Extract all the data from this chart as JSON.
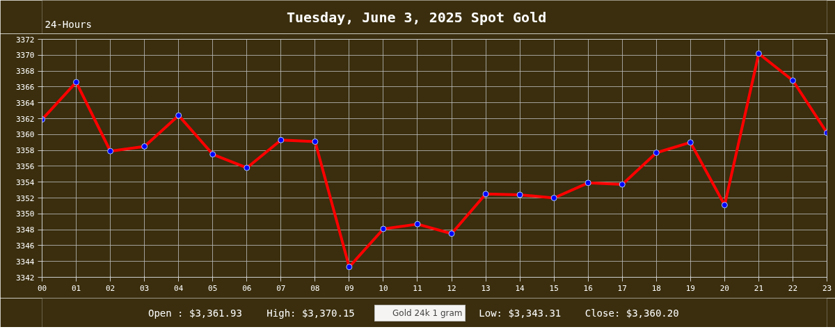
{
  "chart_data": {
    "type": "line",
    "title": "Tuesday, June 3, 2025 Spot Gold",
    "annotations": [
      "24-Hours",
      "Open : $3,361.93",
      "High: $3,370.15",
      "Low: $3,343.31",
      "Close: $3,360.20"
    ],
    "x": [
      0,
      1,
      2,
      3,
      4,
      5,
      6,
      7,
      8,
      9,
      10,
      11,
      12,
      13,
      14,
      15,
      16,
      17,
      18,
      19,
      20,
      21,
      22,
      23
    ],
    "series": [
      {
        "name": "Gold 24k 1 gram",
        "color": "#ff0000",
        "values": [
          3361.9,
          3366.6,
          3357.9,
          3358.5,
          3362.4,
          3357.5,
          3355.8,
          3359.3,
          3359.1,
          3343.3,
          3348.1,
          3348.7,
          3347.5,
          3352.5,
          3352.4,
          3352.0,
          3353.9,
          3353.7,
          3357.7,
          3359.0,
          3351.1,
          3370.2,
          3366.8,
          3360.2
        ]
      }
    ],
    "xlim": [
      0,
      23
    ],
    "xticks": [
      {
        "value": 0,
        "label": "00"
      },
      {
        "value": 1,
        "label": "01"
      },
      {
        "value": 2,
        "label": "02"
      },
      {
        "value": 3,
        "label": "03"
      },
      {
        "value": 4,
        "label": "04"
      },
      {
        "value": 5,
        "label": "05"
      },
      {
        "value": 6,
        "label": "06"
      },
      {
        "value": 7,
        "label": "07"
      },
      {
        "value": 8,
        "label": "08"
      },
      {
        "value": 9,
        "label": "09"
      },
      {
        "value": 10,
        "label": "10"
      },
      {
        "value": 11,
        "label": "11"
      },
      {
        "value": 12,
        "label": "12"
      },
      {
        "value": 13,
        "label": "13"
      },
      {
        "value": 14,
        "label": "14"
      },
      {
        "value": 15,
        "label": "15"
      },
      {
        "value": 16,
        "label": "16"
      },
      {
        "value": 17,
        "label": "17"
      },
      {
        "value": 18,
        "label": "18"
      },
      {
        "value": 19,
        "label": "19"
      },
      {
        "value": 20,
        "label": "20"
      },
      {
        "value": 21,
        "label": "21"
      },
      {
        "value": 22,
        "label": "22"
      },
      {
        "value": 23,
        "label": "23"
      }
    ],
    "ylim": [
      3342,
      3372
    ],
    "yticks": [
      3342,
      3344,
      3346,
      3348,
      3350,
      3352,
      3354,
      3356,
      3358,
      3360,
      3362,
      3364,
      3366,
      3368,
      3370,
      3372
    ],
    "grid": true,
    "legend": "bottom",
    "marker": "circle",
    "line_style": "solid"
  }
}
